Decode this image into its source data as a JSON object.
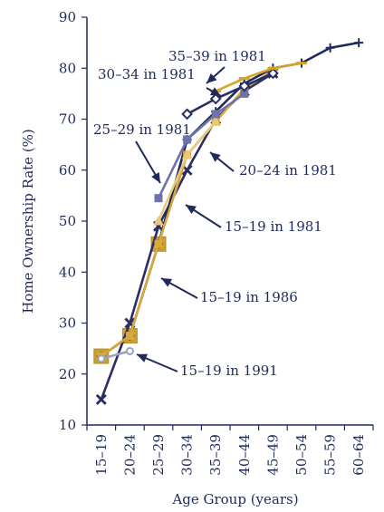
{
  "chart_data": {
    "type": "line",
    "xlabel": "Age Group (years)",
    "ylabel": "Home Ownership Rate (%)",
    "ylim": [
      10,
      90
    ],
    "yticks": [
      10,
      20,
      30,
      40,
      50,
      60,
      70,
      80,
      90
    ],
    "categories": [
      "15–19",
      "20–24",
      "25–29",
      "30–34",
      "35–39",
      "40–44",
      "45–49",
      "50–54",
      "55–59",
      "60–64"
    ],
    "grid": false,
    "legend": "none",
    "series": [
      {
        "values": [
          15,
          30,
          49,
          60,
          70,
          75.5,
          79,
          null,
          null,
          null
        ],
        "color": "#2b2d63",
        "marker": "x"
      },
      {
        "values": [
          23.5,
          27.5,
          45.5,
          66,
          71.5,
          77,
          80,
          81,
          84,
          85
        ],
        "color": "#1f2a5a",
        "marker": "plus"
      },
      {
        "values": [
          23.5,
          27.5,
          45.5,
          63,
          69.5,
          76,
          79.5,
          null,
          null,
          null
        ],
        "color": "#d7a83a",
        "marker": "square"
      },
      {
        "values": [
          23,
          24.5,
          null,
          null,
          null,
          null,
          null,
          null,
          null,
          null
        ],
        "color": "#9aa0c0",
        "marker": "circle"
      },
      {
        "values": [
          null,
          null,
          50,
          63,
          69.5,
          null,
          null,
          null,
          null,
          null
        ],
        "color": "#e8c87d",
        "marker": "triangle"
      },
      {
        "values": [
          null,
          null,
          54.5,
          66,
          71,
          75,
          null,
          null,
          null,
          null
        ],
        "color": "#6d72a8",
        "marker": "square"
      },
      {
        "values": [
          null,
          null,
          null,
          71,
          74,
          76.5,
          79,
          null,
          null,
          null
        ],
        "color": "#263063",
        "marker": "diamond"
      },
      {
        "values": [
          null,
          null,
          null,
          null,
          75.5,
          78,
          80,
          81,
          null,
          null
        ],
        "color": "#d4a52d",
        "marker": "dash"
      }
    ],
    "annotations": [
      {
        "text": "35–39 in 1981"
      },
      {
        "text": "30–34 in 1981"
      },
      {
        "text": "25–29 in 1981"
      },
      {
        "text": "20–24 in 1981"
      },
      {
        "text": "15–19 in 1981"
      },
      {
        "text": "15–19 in 1986"
      },
      {
        "text": "15–19 in 1991"
      }
    ]
  }
}
